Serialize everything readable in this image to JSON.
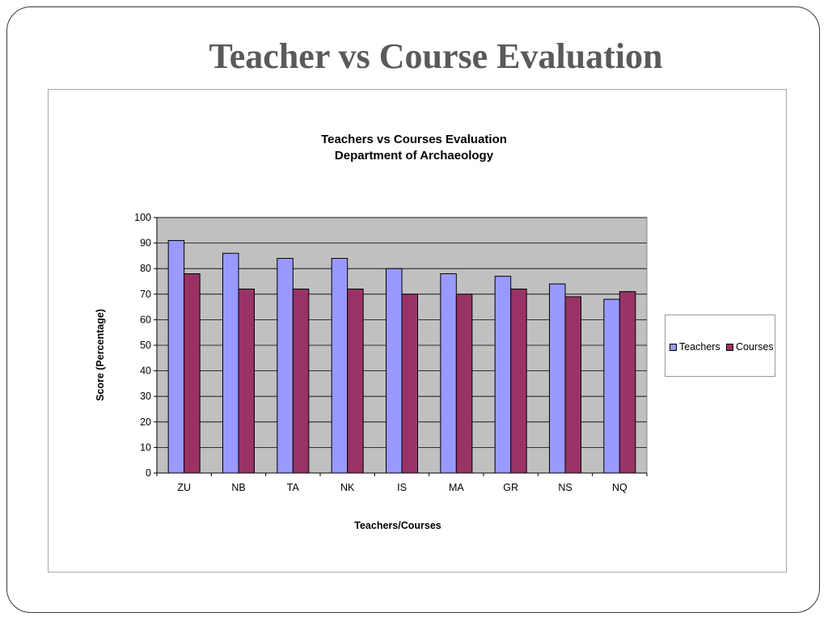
{
  "slide": {
    "title": "Teacher vs Course Evaluation"
  },
  "chart_data": {
    "type": "bar",
    "title": "Teachers vs Courses Evaluation",
    "subtitle": "Department of Archaeology",
    "xlabel": "Teachers/Courses",
    "ylabel": "Score (Percentage)",
    "ylim": [
      0,
      100
    ],
    "yticks": [
      0,
      10,
      20,
      30,
      40,
      50,
      60,
      70,
      80,
      90,
      100
    ],
    "grid": true,
    "legend_position": "right",
    "categories": [
      "ZU",
      "NB",
      "TA",
      "NK",
      "IS",
      "MA",
      "GR",
      "NS",
      "NQ"
    ],
    "series": [
      {
        "name": "Teachers",
        "color": "#9999ff",
        "values": [
          91,
          86,
          84,
          84,
          80,
          78,
          77,
          74,
          68
        ]
      },
      {
        "name": "Courses",
        "color": "#993366",
        "values": [
          78,
          72,
          72,
          72,
          70,
          70,
          72,
          69,
          71
        ]
      }
    ],
    "plot_background": "#c0c0c0"
  }
}
